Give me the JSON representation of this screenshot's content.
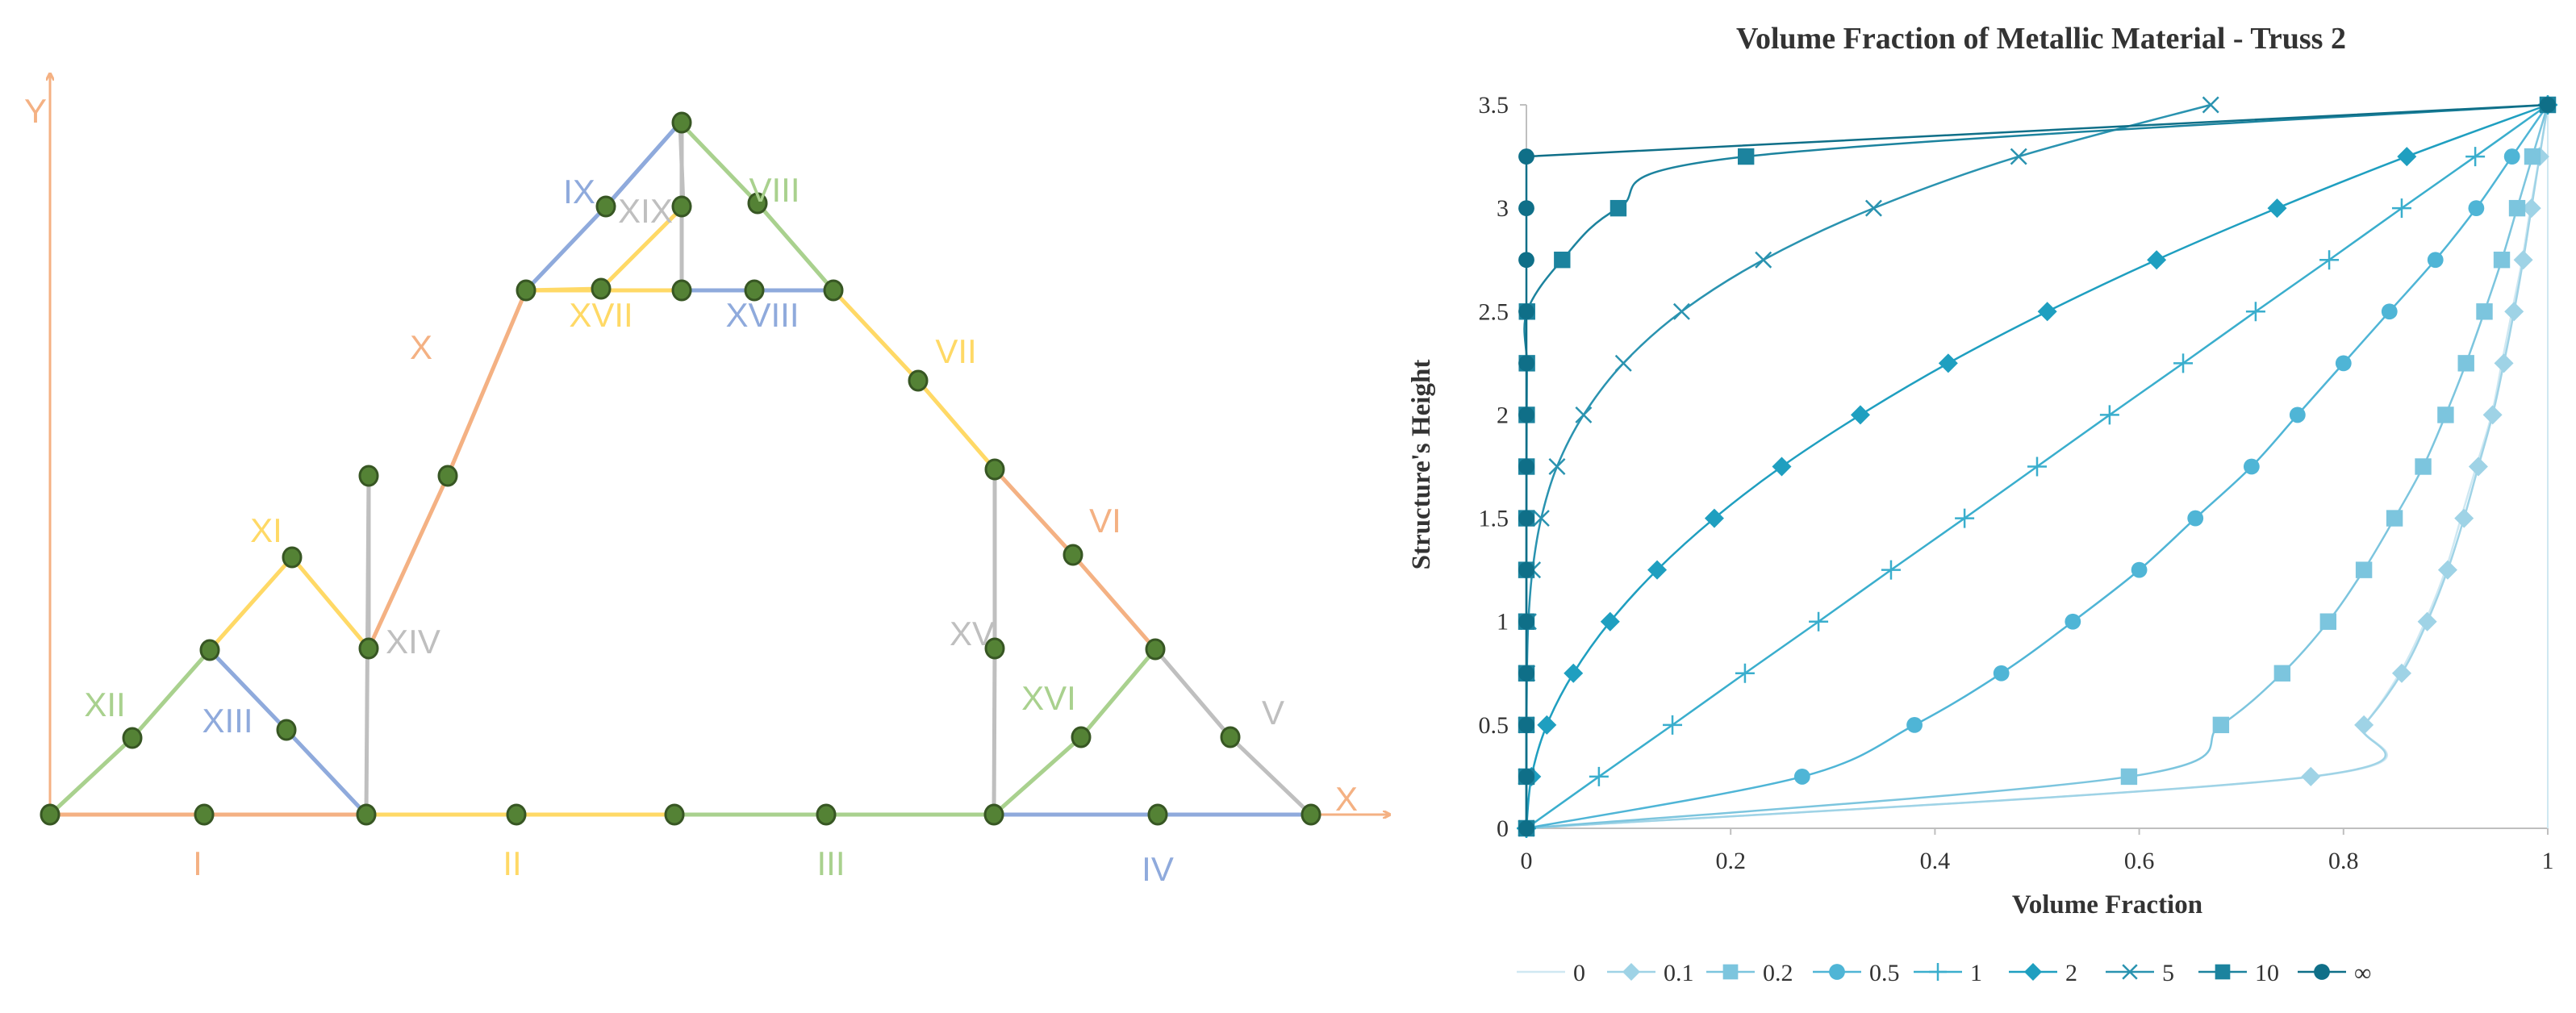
{
  "truss": {
    "axes": {
      "x_label": "X",
      "y_label": "Y",
      "axis_color": "#f4b183"
    },
    "colors": {
      "orange": "#f4b183",
      "yellow": "#ffd966",
      "green": "#a9d18e",
      "blue": "#8faadc",
      "gray": "#bfbfbf",
      "node_fill": "#548235",
      "node_stroke": "#375623"
    },
    "member_labels": [
      {
        "id": "I",
        "text": "I",
        "color": "orange"
      },
      {
        "id": "II",
        "text": "II",
        "color": "yellow"
      },
      {
        "id": "III",
        "text": "III",
        "color": "green"
      },
      {
        "id": "IV",
        "text": "IV",
        "color": "blue"
      },
      {
        "id": "V",
        "text": "V",
        "color": "gray"
      },
      {
        "id": "VI",
        "text": "VI",
        "color": "orange"
      },
      {
        "id": "VII",
        "text": "VII",
        "color": "yellow"
      },
      {
        "id": "VIII",
        "text": "VIII",
        "color": "green"
      },
      {
        "id": "IX",
        "text": "IX",
        "color": "blue"
      },
      {
        "id": "X",
        "text": "X",
        "color": "orange"
      },
      {
        "id": "XI",
        "text": "XI",
        "color": "yellow"
      },
      {
        "id": "XII",
        "text": "XII",
        "color": "green"
      },
      {
        "id": "XIII",
        "text": "XIII",
        "color": "blue"
      },
      {
        "id": "XIV",
        "text": "XIV",
        "color": "gray"
      },
      {
        "id": "XV",
        "text": "XV",
        "color": "gray"
      },
      {
        "id": "XVI",
        "text": "XVI",
        "color": "green"
      },
      {
        "id": "XVII",
        "text": "XVII",
        "color": "yellow"
      },
      {
        "id": "XVIII",
        "text": "XVIII",
        "color": "blue"
      },
      {
        "id": "XIX",
        "text": "XIX",
        "color": "gray"
      }
    ]
  },
  "chart_data": {
    "type": "line",
    "title": "Volume Fraction of Metallic Material  - Truss 2",
    "xlabel": "Volume Fraction",
    "ylabel": "Structure's Height",
    "xlim": [
      0,
      1
    ],
    "ylim": [
      0,
      3.5
    ],
    "xticks": [
      "0",
      "0.2",
      "0.4",
      "0.6",
      "0.8",
      "1"
    ],
    "yticks": [
      "0",
      "0.5",
      "1",
      "1.5",
      "2",
      "2.5",
      "3",
      "3.5"
    ],
    "grid": false,
    "legend_position": "bottom",
    "y_points": [
      0,
      0.25,
      0.5,
      0.75,
      1,
      1.25,
      1.5,
      1.75,
      2,
      2.25,
      2.5,
      2.75,
      3,
      3.25,
      3.5
    ],
    "series": [
      {
        "name": "0",
        "marker": "none",
        "color": "#cfe8f2",
        "x": [
          0,
          0.77,
          0.82,
          0.855,
          0.88,
          0.9,
          0.915,
          0.93,
          0.945,
          0.955,
          0.965,
          0.975,
          0.983,
          0.992,
          1
        ]
      },
      {
        "name": "0.1",
        "marker": "diamond",
        "color": "#9fd3e6",
        "x": [
          0,
          0.768,
          0.82,
          0.857,
          0.882,
          0.902,
          0.918,
          0.932,
          0.946,
          0.957,
          0.967,
          0.976,
          0.984,
          0.992,
          1
        ]
      },
      {
        "name": "0.2",
        "marker": "square",
        "color": "#7cc5de",
        "x": [
          0,
          0.59,
          0.68,
          0.74,
          0.785,
          0.82,
          0.85,
          0.878,
          0.9,
          0.92,
          0.938,
          0.955,
          0.97,
          0.985,
          1
        ]
      },
      {
        "name": "0.5",
        "marker": "circle",
        "color": "#4fb5d6",
        "x": [
          0,
          0.27,
          0.38,
          0.465,
          0.535,
          0.6,
          0.655,
          0.71,
          0.755,
          0.8,
          0.845,
          0.89,
          0.93,
          0.965,
          1
        ]
      },
      {
        "name": "1",
        "marker": "plus",
        "color": "#3aaecd",
        "x": [
          0,
          0.071,
          0.143,
          0.214,
          0.286,
          0.357,
          0.429,
          0.5,
          0.571,
          0.643,
          0.714,
          0.786,
          0.857,
          0.929,
          1
        ]
      },
      {
        "name": "2",
        "marker": "diamond",
        "color": "#1f9fc0",
        "x": [
          0,
          0.005,
          0.02,
          0.046,
          0.082,
          0.128,
          0.184,
          0.25,
          0.327,
          0.413,
          0.51,
          0.617,
          0.735,
          0.862,
          1
        ]
      },
      {
        "name": "5",
        "marker": "x",
        "color": "#2a93b0",
        "x": [
          0,
          1.9e-06,
          6e-05,
          0.0005,
          0.0019,
          0.006,
          0.0145,
          0.03,
          0.056,
          0.095,
          0.152,
          0.232,
          0.34,
          0.482,
          0.67
        ]
      },
      {
        "name": "10",
        "marker": "square",
        "color": "#1c839e",
        "x": [
          0,
          3e-07,
          5e-07,
          2e-06,
          1e-05,
          2e-05,
          6e-05,
          0.00015,
          0.0003,
          0.0005,
          0.0006,
          0.035,
          0.09,
          0.215,
          1
        ]
      },
      {
        "name": "∞",
        "marker": "circle",
        "color": "#0f6f88",
        "x": [
          0,
          0,
          0,
          0,
          0,
          0,
          0,
          0,
          0,
          0,
          0,
          0,
          0,
          0,
          1
        ]
      }
    ]
  }
}
